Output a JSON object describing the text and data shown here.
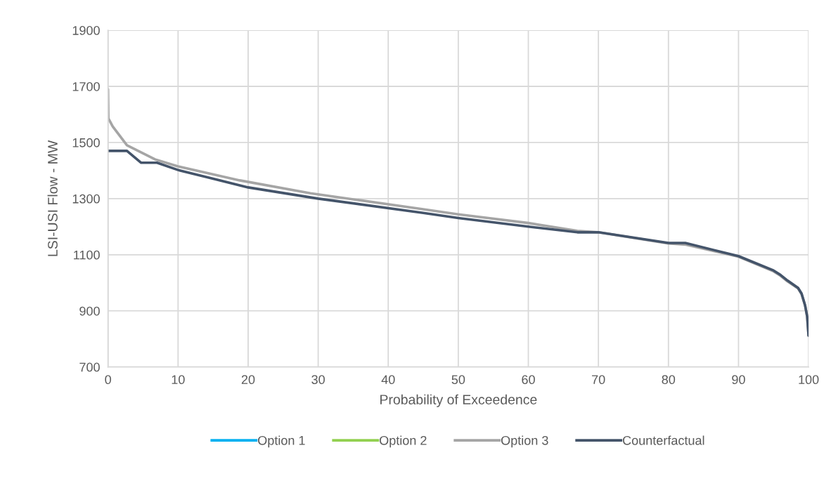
{
  "chart_data": {
    "type": "line",
    "xlabel": "Probability of Exceedence",
    "ylabel": "LSI-USI Flow - MW",
    "xlim": [
      0,
      100
    ],
    "xticks": [
      0,
      10,
      20,
      30,
      40,
      50,
      60,
      70,
      80,
      90,
      100
    ],
    "ylim": [
      700,
      1900
    ],
    "yticks": [
      700,
      900,
      1100,
      1300,
      1500,
      1700,
      1900
    ],
    "grid": true,
    "legend": "bottom",
    "marker": "none",
    "line_style": "solid",
    "series": [
      {
        "name": "Option 1",
        "color": "#00b0f0"
      },
      {
        "name": "Option 2",
        "color": "#92d050"
      },
      {
        "name": "Option 3",
        "color": "#a5a5a5",
        "x": [
          0,
          0.05,
          0.67,
          2.7,
          6.7,
          10,
          18.8,
          28.9,
          45,
          50,
          60,
          67,
          70,
          80,
          82.5,
          90,
          95,
          96,
          97,
          98.5,
          99,
          99.5,
          99.8,
          100
        ],
        "values": [
          1690,
          1586,
          1557,
          1490,
          1440,
          1415,
          1365,
          1319,
          1262,
          1244,
          1213,
          1185,
          1180,
          1140,
          1136,
          1093,
          1041,
          1025,
          1005,
          980,
          960,
          920,
          880,
          812
        ]
      },
      {
        "name": "Counterfactual",
        "color": "#44546a",
        "x": [
          0,
          2.7,
          4.7,
          7,
          10,
          20,
          30,
          45,
          50,
          60,
          67,
          70,
          80,
          82.4,
          90,
          95,
          96,
          97,
          98.5,
          99,
          99.5,
          99.8,
          100
        ],
        "values": [
          1470,
          1470,
          1428,
          1428,
          1402,
          1340,
          1300,
          1249,
          1231,
          1200,
          1180,
          1180,
          1142,
          1142,
          1095,
          1044,
          1028,
          1008,
          982,
          962,
          920,
          880,
          812
        ]
      }
    ]
  }
}
